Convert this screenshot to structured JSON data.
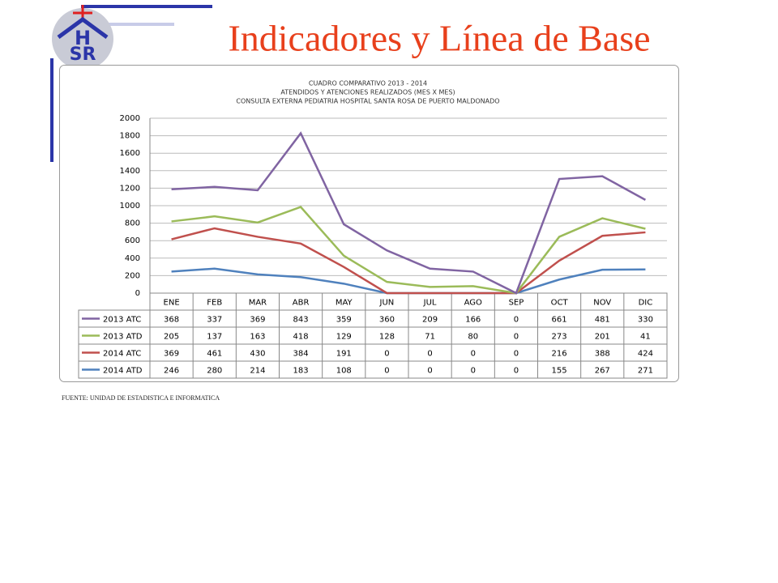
{
  "slide_title": "Indicadores y Línea de Base",
  "logo": {
    "top": "H",
    "bottom": "SR"
  },
  "chart_data": {
    "type": "line",
    "stacked": true,
    "title_lines": [
      "CUADRO COMPARATIVO 2013 - 2014",
      "ATENDIDOS Y ATENCIONES  REALIZADOS (MES X MES)",
      "CONSULTA EXTERNA PEDIATRIA HOSPITAL SANTA ROSA DE PUERTO MALDONADO"
    ],
    "categories": [
      "ENE",
      "FEB",
      "MAR",
      "ABR",
      "MAY",
      "JUN",
      "JUL",
      "AGO",
      "SEP",
      "OCT",
      "NOV",
      "DIC"
    ],
    "series": [
      {
        "name": "2013 ATC",
        "color": "#8064a2",
        "values": [
          368,
          337,
          369,
          843,
          359,
          360,
          209,
          166,
          0,
          661,
          481,
          330
        ]
      },
      {
        "name": "2013 ATD",
        "color": "#9bbb59",
        "values": [
          205,
          137,
          163,
          418,
          129,
          128,
          71,
          80,
          0,
          273,
          201,
          41
        ]
      },
      {
        "name": "2014 ATC",
        "color": "#c0504d",
        "values": [
          369,
          461,
          430,
          384,
          191,
          0,
          0,
          0,
          0,
          216,
          388,
          424
        ]
      },
      {
        "name": "2014 ATD",
        "color": "#4f81bd",
        "values": [
          246,
          280,
          214,
          183,
          108,
          0,
          0,
          0,
          0,
          155,
          267,
          271
        ]
      }
    ],
    "ylim": [
      0,
      2000
    ],
    "yticks": [
      0,
      200,
      400,
      600,
      800,
      1000,
      1200,
      1400,
      1600,
      1800,
      2000
    ],
    "grid": true
  },
  "source": "FUENTE: UNIDAD DE ESTADISTICA E INFORMATICA"
}
